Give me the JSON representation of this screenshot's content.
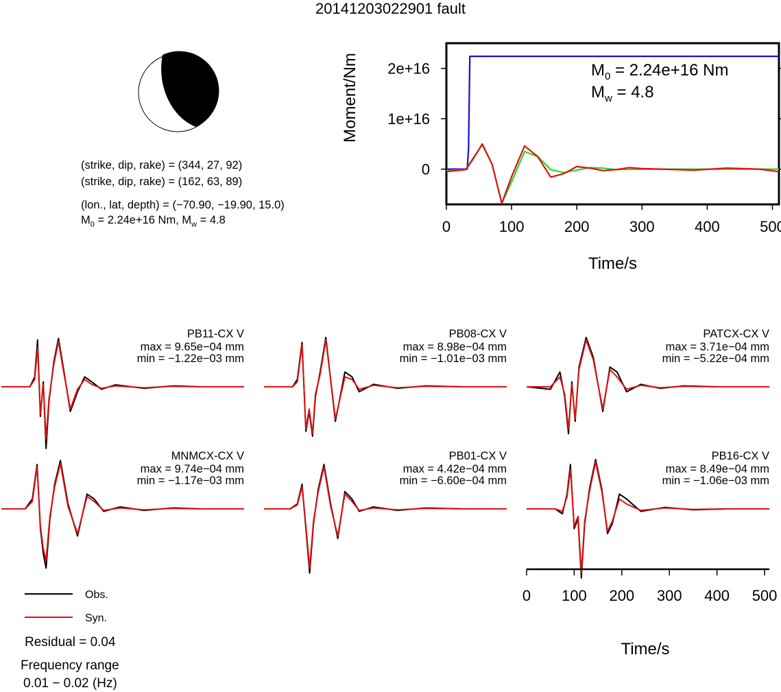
{
  "title": "20141203022901 fault",
  "source": {
    "nodal_plane_1": "(strike, dip, rake) = (344, 27, 92)",
    "nodal_plane_2": "(strike, dip, rake) = (162, 63, 89)",
    "location": "(lon., lat, depth) = (−70.90, −19.90, 15.0)",
    "m0_text": "2.24e+16 Nm, M",
    "mw_value": " = 4.8"
  },
  "colors": {
    "observed": "#000000",
    "synthetic": "#e01010",
    "moment_cumulative": "#1010d0",
    "moment_rate_alt": "#22dd22"
  },
  "chart_data": [
    {
      "type": "line",
      "title": "",
      "xlabel": "Time/s",
      "ylabel": "Moment/Nm",
      "xlim": [
        0,
        510
      ],
      "ylim": [
        -7000000000000000.0,
        2.5e+16
      ],
      "xticks": [
        "0",
        "100",
        "200",
        "300",
        "400",
        "500"
      ],
      "yticks": [
        "0",
        "1e+16",
        "2e+16"
      ],
      "annotation_m0": " = 2.24e+16 Nm",
      "annotation_mw": " = 4.8",
      "series": [
        {
          "color": "#1010d0",
          "x": [
            0,
            32,
            34,
            36,
            510
          ],
          "y": [
            0,
            0,
            4000000000000000.0,
            2.24e+16,
            2.24e+16
          ]
        },
        {
          "color": "#22dd22",
          "x": [
            0,
            30,
            40,
            55,
            70,
            85,
            100,
            120,
            140,
            160,
            180,
            200,
            220,
            240,
            260,
            300,
            350,
            400,
            450,
            510
          ],
          "y": [
            -300000000000000.0,
            -100000000000000.0,
            2000000000000000.0,
            4800000000000000.0,
            1000000000000000.0,
            -6800000000000000.0,
            -2500000000000000.0,
            3500000000000000.0,
            2500000000000000.0,
            -100000000000000.0,
            -700000000000000.0,
            -200000000000000.0,
            300000000000000.0,
            200000000000000.0,
            -100000000000000.0,
            0,
            0,
            0,
            0,
            0
          ]
        },
        {
          "color": "#e01010",
          "x": [
            0,
            30,
            40,
            55,
            70,
            85,
            100,
            120,
            140,
            160,
            180,
            200,
            220,
            240,
            260,
            280,
            300,
            330,
            380,
            430,
            480,
            510
          ],
          "y": [
            -500000000000000.0,
            -100000000000000.0,
            1800000000000000.0,
            5000000000000000.0,
            1000000000000000.0,
            -6800000000000000.0,
            -1500000000000000.0,
            4600000000000000.0,
            2500000000000000.0,
            -1600000000000000.0,
            -900000000000000.0,
            500000000000000.0,
            200000000000000.0,
            -300000000000000.0,
            -100000000000000.0,
            300000000000000.0,
            100000000000000.0,
            0,
            -200000000000000.0,
            200000000000000.0,
            0,
            -500000000000000.0
          ]
        }
      ]
    },
    {
      "type": "line",
      "title": "",
      "xlabel": "Time/s",
      "xlim": [
        0,
        510
      ],
      "xticks": [
        "0",
        "100",
        "200",
        "300",
        "400",
        "500"
      ],
      "legend": [
        "Obs.",
        "Syn."
      ],
      "residual": "Residual = 0.04",
      "frequency_label": "Frequency range",
      "frequency_value": "0.01 − 0.02 (Hz)",
      "stations": [
        {
          "name": "PB11-CX V",
          "max": "max = 9.65e−04 mm",
          "min": "min = −1.22e−03 mm",
          "maxv": 0.000965,
          "minv": -0.00122,
          "t": [
            0,
            60,
            70,
            76,
            82,
            88,
            94,
            100,
            110,
            120,
            130,
            145,
            160,
            175,
            190,
            210,
            240,
            300,
            360,
            420,
            510
          ],
          "obs": [
            0,
            0,
            0.2,
            0.95,
            -0.6,
            0.1,
            -1.25,
            -0.3,
            0.5,
            0.98,
            0.4,
            -0.5,
            -0.1,
            0.2,
            0.1,
            -0.05,
            0.04,
            -0.03,
            0.02,
            0,
            0
          ],
          "syn": [
            0,
            0,
            0.15,
            0.8,
            -0.55,
            0.05,
            -1.05,
            -0.25,
            0.45,
            0.92,
            0.35,
            -0.45,
            -0.05,
            0.15,
            0.05,
            -0.03,
            0.02,
            -0.02,
            0.01,
            0,
            0
          ]
        },
        {
          "name": "PB08-CX V",
          "max": "max = 8.98e−04 mm",
          "min": "min = −1.01e−03 mm",
          "maxv": 0.000898,
          "minv": -0.00101,
          "t": [
            0,
            60,
            70,
            80,
            88,
            95,
            102,
            108,
            118,
            130,
            150,
            170,
            185,
            200,
            230,
            280,
            340,
            420,
            510
          ],
          "obs": [
            0,
            0,
            0.15,
            0.9,
            -0.9,
            -0.5,
            -1.0,
            -0.2,
            0.3,
            1.0,
            -0.7,
            0.3,
            0.2,
            -0.1,
            0.05,
            -0.03,
            0.02,
            0,
            0
          ],
          "syn": [
            0,
            0,
            0.1,
            0.85,
            -0.85,
            -0.45,
            -0.95,
            -0.15,
            0.25,
            0.95,
            -0.65,
            0.2,
            0.15,
            -0.05,
            0.03,
            -0.02,
            0.01,
            0,
            0
          ]
        },
        {
          "name": "PATCX-CX V",
          "max": "max = 3.71e−04 mm",
          "min": "min = −5.22e−04 mm",
          "maxv": 0.000371,
          "minv": -0.000522,
          "t": [
            0,
            50,
            70,
            80,
            88,
            95,
            102,
            110,
            125,
            140,
            160,
            175,
            190,
            210,
            240,
            280,
            330,
            400,
            510
          ],
          "obs": [
            0,
            -0.05,
            0.3,
            -0.2,
            -0.95,
            0.1,
            -0.7,
            0.4,
            1.0,
            0.6,
            -0.5,
            0.4,
            0.3,
            -0.1,
            0.05,
            -0.03,
            0.02,
            0,
            0
          ],
          "syn": [
            0,
            0,
            0.2,
            -0.15,
            -0.85,
            0.05,
            -0.65,
            0.35,
            0.95,
            0.55,
            -0.45,
            0.35,
            0.2,
            -0.05,
            0.03,
            -0.02,
            0.01,
            0,
            0
          ]
        },
        {
          "name": "MNMCX-CX V",
          "max": "max = 9.74e−04 mm",
          "min": "min = −1.17e−03 mm",
          "maxv": 0.000974,
          "minv": -0.00117,
          "t": [
            0,
            50,
            65,
            75,
            82,
            88,
            94,
            102,
            112,
            124,
            140,
            160,
            180,
            195,
            215,
            250,
            300,
            360,
            420,
            510
          ],
          "obs": [
            0,
            0,
            0.2,
            0.9,
            -0.4,
            -0.9,
            -1.2,
            -0.2,
            0.5,
            0.98,
            0.1,
            -0.55,
            0.3,
            0.2,
            -0.05,
            0.04,
            -0.03,
            0.02,
            0,
            0
          ],
          "syn": [
            0,
            0,
            0.15,
            0.85,
            -0.35,
            -0.8,
            -1.05,
            -0.15,
            0.45,
            0.92,
            0.05,
            -0.5,
            0.25,
            0.15,
            -0.03,
            0.02,
            -0.02,
            0.01,
            0,
            0
          ]
        },
        {
          "name": "PB01-CX V",
          "max": "max = 4.42e−04 mm",
          "min": "min = −6.60e−04 mm",
          "maxv": 0.000442,
          "minv": -0.00066,
          "t": [
            0,
            55,
            70,
            80,
            88,
            96,
            104,
            114,
            126,
            140,
            155,
            170,
            185,
            200,
            230,
            280,
            340,
            420,
            510
          ],
          "obs": [
            0,
            0,
            0.1,
            0.5,
            -0.4,
            -1.3,
            -0.3,
            0.4,
            0.9,
            0.1,
            -0.6,
            0.35,
            0.2,
            -0.05,
            0.04,
            -0.03,
            0.02,
            0,
            0
          ],
          "syn": [
            0,
            0,
            0.08,
            0.45,
            -0.35,
            -1.2,
            -0.25,
            0.35,
            0.85,
            0.05,
            -0.55,
            0.3,
            0.15,
            -0.03,
            0.02,
            -0.02,
            0.01,
            0,
            0
          ]
        },
        {
          "name": "PB16-CX V",
          "max": "max = 8.49e−04 mm",
          "min": "min = −1.06e−03 mm",
          "maxv": 0.000849,
          "minv": -0.00106,
          "t": [
            0,
            60,
            75,
            85,
            92,
            100,
            108,
            115,
            122,
            132,
            145,
            158,
            170,
            180,
            195,
            210,
            240,
            290,
            350,
            420,
            510
          ],
          "obs": [
            0,
            0,
            -0.1,
            0.3,
            0.9,
            -0.4,
            -0.2,
            -1.4,
            -0.3,
            0.4,
            1.0,
            0.4,
            -0.5,
            -0.3,
            0.3,
            0.2,
            -0.05,
            0.03,
            -0.02,
            0,
            0
          ],
          "syn": [
            0,
            0,
            -0.05,
            0.25,
            0.8,
            -0.35,
            -0.15,
            -1.3,
            -0.25,
            0.35,
            0.95,
            0.35,
            -0.45,
            -0.25,
            0.2,
            0.1,
            -0.03,
            0.02,
            -0.01,
            0,
            0
          ]
        }
      ]
    }
  ]
}
